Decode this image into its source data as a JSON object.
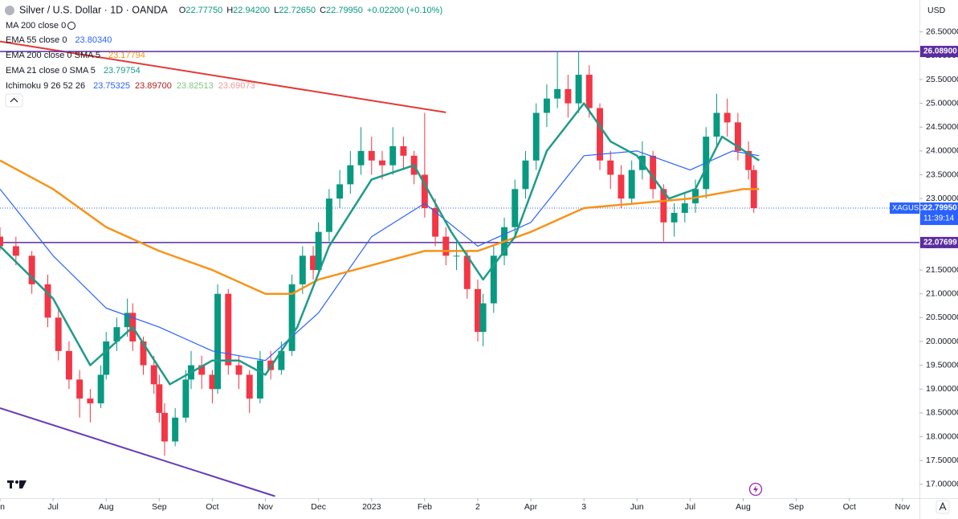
{
  "chart_data": {
    "type": "candlestick",
    "title": "Silver / U.S. Dollar · 1D · OANDA",
    "quote": [
      {
        "key": "O",
        "value": "22.77750"
      },
      {
        "key": "H",
        "value": "22.94200"
      },
      {
        "key": "L",
        "value": "22.72650"
      },
      {
        "key": "C",
        "value": "22.79950"
      }
    ],
    "change": "+0.02200 (+0.10%)",
    "currency": "USD",
    "up_color": "#089981",
    "down_color": "#f23645",
    "xlim": [
      0,
      17.32
    ],
    "ylim": [
      16.71,
      27.17
    ],
    "xticks": [
      {
        "value": 0,
        "label": "un"
      },
      {
        "value": 1,
        "label": "Jul"
      },
      {
        "value": 2,
        "label": "Aug"
      },
      {
        "value": 3,
        "label": "Sep"
      },
      {
        "value": 4,
        "label": "Oct"
      },
      {
        "value": 5,
        "label": "Nov"
      },
      {
        "value": 6,
        "label": "Dec"
      },
      {
        "value": 7,
        "label": "2023"
      },
      {
        "value": 8,
        "label": "Feb"
      },
      {
        "value": 9,
        "label": "2"
      },
      {
        "value": 10,
        "label": "Apr"
      },
      {
        "value": 11,
        "label": "3"
      },
      {
        "value": 12,
        "label": "Jun"
      },
      {
        "value": 13,
        "label": "Jul"
      },
      {
        "value": 14,
        "label": "Aug"
      },
      {
        "value": 15,
        "label": "Sep"
      },
      {
        "value": 16,
        "label": "Oct"
      },
      {
        "value": 17,
        "label": "Nov"
      }
    ],
    "yticks": [
      {
        "value": 26.5,
        "label": "26.50000"
      },
      {
        "value": 26,
        "label": "26.00000"
      },
      {
        "value": 25.5,
        "label": "25.50000"
      },
      {
        "value": 25,
        "label": "25.00000"
      },
      {
        "value": 24.5,
        "label": "24.50000"
      },
      {
        "value": 24,
        "label": "24.00000"
      },
      {
        "value": 23.5,
        "label": "23.50000"
      },
      {
        "value": 23,
        "label": "23.00000"
      },
      {
        "value": 22.5,
        "label": "22.50000"
      },
      {
        "value": 22,
        "label": "22.00000"
      },
      {
        "value": 21.5,
        "label": "21.50000"
      },
      {
        "value": 21,
        "label": "21.00000"
      },
      {
        "value": 20.5,
        "label": "20.50000"
      },
      {
        "value": 20,
        "label": "20.00000"
      },
      {
        "value": 19.5,
        "label": "19.50000"
      },
      {
        "value": 19,
        "label": "19.00000"
      },
      {
        "value": 18.5,
        "label": "18.50000"
      },
      {
        "value": 18,
        "label": "18.00000"
      },
      {
        "value": 17.5,
        "label": "17.50000"
      },
      {
        "value": 17,
        "label": "17.00000"
      }
    ],
    "grid": false,
    "x": [
      0.0,
      0.3,
      0.6,
      0.9,
      1.1,
      1.3,
      1.5,
      1.7,
      1.9,
      2.0,
      2.2,
      2.4,
      2.5,
      2.7,
      2.9,
      3.0,
      3.1,
      3.3,
      3.5,
      3.6,
      3.8,
      4.0,
      4.1,
      4.3,
      4.5,
      4.7,
      4.9,
      5.1,
      5.3,
      5.5,
      5.7,
      5.9,
      6.0,
      6.2,
      6.4,
      6.6,
      6.8,
      7.0,
      7.2,
      7.4,
      7.6,
      7.8,
      8.0,
      8.2,
      8.4,
      8.6,
      8.8,
      9.0,
      9.1,
      9.3,
      9.5,
      9.7,
      9.9,
      10.1,
      10.3,
      10.5,
      10.7,
      10.9,
      11.1,
      11.3,
      11.5,
      11.7,
      11.9,
      12.1,
      12.3,
      12.5,
      12.7,
      12.9,
      13.1,
      13.3,
      13.5,
      13.7,
      13.9,
      14.1,
      14.2
    ],
    "open": [
      22.2,
      22.0,
      21.8,
      21.2,
      20.5,
      19.8,
      19.2,
      18.8,
      18.7,
      19.3,
      20.0,
      20.3,
      20.6,
      20.0,
      19.5,
      19.1,
      18.5,
      17.9,
      18.4,
      19.2,
      19.5,
      19.3,
      19.0,
      21.0,
      19.5,
      19.3,
      18.8,
      19.6,
      19.4,
      19.8,
      21.2,
      21.8,
      21.5,
      22.3,
      23.0,
      23.3,
      23.7,
      24.0,
      23.8,
      23.7,
      24.1,
      23.9,
      23.5,
      22.8,
      22.2,
      21.8,
      21.8,
      21.1,
      20.2,
      20.8,
      21.8,
      22.4,
      23.2,
      23.8,
      24.8,
      25.1,
      25.3,
      25.0,
      25.6,
      24.9,
      23.8,
      23.5,
      23.0,
      23.6,
      23.9,
      23.2,
      22.5,
      22.7,
      22.9,
      23.2,
      24.3,
      24.8,
      24.6,
      24.0,
      23.6
    ],
    "high": [
      22.4,
      22.2,
      21.9,
      21.4,
      20.7,
      20.0,
      19.4,
      19.0,
      19.5,
      20.2,
      20.5,
      20.9,
      20.8,
      20.1,
      19.7,
      19.3,
      18.7,
      18.6,
      19.4,
      19.8,
      19.7,
      19.4,
      21.2,
      21.1,
      19.7,
      19.4,
      19.8,
      19.8,
      20.0,
      21.4,
      22.0,
      22.0,
      22.5,
      23.2,
      23.6,
      24.0,
      24.5,
      24.3,
      24.0,
      24.5,
      24.3,
      24.0,
      24.8,
      23.0,
      22.4,
      22.1,
      21.9,
      21.3,
      21.0,
      22.0,
      22.6,
      23.4,
      24.0,
      25.0,
      25.4,
      26.1,
      25.6,
      26.1,
      25.8,
      25.0,
      24.0,
      23.7,
      23.8,
      24.2,
      24.0,
      23.3,
      22.9,
      23.1,
      23.4,
      24.5,
      25.2,
      25.1,
      24.8,
      24.2,
      23.7
    ],
    "low": [
      21.9,
      21.6,
      21.0,
      20.3,
      19.6,
      19.0,
      18.4,
      18.3,
      18.6,
      19.2,
      19.8,
      20.1,
      19.8,
      19.3,
      18.9,
      18.3,
      17.6,
      17.8,
      18.3,
      19.0,
      19.0,
      18.7,
      18.9,
      19.3,
      19.0,
      18.5,
      18.7,
      19.2,
      19.3,
      19.7,
      21.0,
      21.3,
      21.4,
      22.1,
      22.8,
      23.1,
      23.5,
      23.5,
      23.4,
      23.5,
      23.6,
      23.3,
      22.6,
      22.0,
      21.6,
      21.5,
      20.9,
      20.0,
      19.9,
      20.6,
      21.6,
      22.2,
      23.0,
      23.6,
      24.5,
      24.9,
      24.7,
      24.8,
      24.7,
      23.6,
      23.2,
      22.8,
      22.9,
      23.4,
      23.0,
      22.1,
      22.2,
      22.5,
      22.7,
      23.0,
      24.1,
      24.3,
      23.8,
      23.4,
      22.7
    ],
    "close": [
      22.0,
      21.8,
      21.2,
      20.5,
      19.8,
      19.2,
      18.8,
      18.7,
      19.3,
      20.0,
      20.3,
      20.6,
      20.0,
      19.5,
      19.1,
      18.5,
      17.9,
      18.4,
      19.2,
      19.5,
      19.3,
      19.0,
      21.0,
      19.5,
      19.3,
      18.8,
      19.6,
      19.4,
      19.8,
      21.2,
      21.8,
      21.5,
      22.3,
      23.0,
      23.3,
      23.7,
      24.0,
      23.8,
      23.7,
      24.1,
      23.9,
      23.5,
      22.8,
      22.2,
      21.8,
      21.8,
      21.1,
      20.2,
      20.8,
      21.8,
      22.4,
      23.2,
      23.8,
      24.8,
      25.1,
      25.3,
      25.0,
      25.6,
      24.9,
      23.8,
      23.5,
      23.0,
      23.6,
      23.9,
      23.2,
      22.5,
      22.7,
      22.9,
      23.2,
      24.3,
      24.8,
      24.6,
      24.0,
      23.6,
      22.8
    ],
    "series": [
      {
        "name": "EMA 55 close 0",
        "value_label": "23.80340",
        "color": "#2962ff",
        "width": 1.2,
        "x": [
          0,
          1,
          2,
          3,
          4,
          5,
          6,
          7,
          8,
          9,
          10,
          11,
          12,
          13,
          13.8,
          14.3
        ],
        "values": [
          23.2,
          21.8,
          20.7,
          20.3,
          19.8,
          19.6,
          20.6,
          22.2,
          22.9,
          22.0,
          22.5,
          23.9,
          24.0,
          23.6,
          24.0,
          23.9
        ]
      },
      {
        "name": "EMA 200 close 0 SMA 5",
        "value_label": "23.17794",
        "color": "#f7931a",
        "width": 2.5,
        "x": [
          0,
          1,
          2,
          3,
          4,
          5,
          5.5,
          6,
          7,
          8,
          9,
          10,
          11,
          12,
          13,
          14,
          14.3
        ],
        "values": [
          23.8,
          23.2,
          22.4,
          21.9,
          21.5,
          21.0,
          21.0,
          21.3,
          21.6,
          21.9,
          21.9,
          22.3,
          22.8,
          22.9,
          23.0,
          23.2,
          23.2
        ]
      },
      {
        "name": "EMA 21 close 0 SMA 5",
        "value_label": "23.79754",
        "color": "#1e9b8a",
        "width": 2.5,
        "x": [
          0,
          1,
          1.7,
          2.5,
          3.2,
          4,
          4.5,
          5,
          5.6,
          6.2,
          7,
          7.8,
          8.5,
          9.1,
          9.7,
          10.3,
          11,
          11.5,
          12,
          12.6,
          13.1,
          13.6,
          14.3
        ],
        "values": [
          22.0,
          20.9,
          19.5,
          20.3,
          19.1,
          19.6,
          19.6,
          19.3,
          20.3,
          22.0,
          23.4,
          23.7,
          22.3,
          21.3,
          22.2,
          24.0,
          25.0,
          24.2,
          23.9,
          23.0,
          23.2,
          24.3,
          23.8
        ]
      }
    ],
    "indicators": [
      {
        "name": "MA 200 close 0"
      },
      {
        "name": "Ichimoku 9 26 52 26",
        "value_labels": [
          "23.75325",
          "23.89700",
          "23.82513",
          "23.69073"
        ],
        "label_colors": [
          "#2962ff",
          "#b71c1c",
          "#81c784",
          "#ef9a9a"
        ]
      }
    ],
    "trend_lines": [
      {
        "x": [
          0,
          8.4
        ],
        "values": [
          26.3,
          24.81
        ],
        "color": "#e53935"
      },
      {
        "x": [
          0,
          5.18
        ],
        "values": [
          18.6,
          16.75
        ],
        "color": "#673ab7"
      }
    ],
    "price_lines": [
      {
        "value": 26.089,
        "label": "26.08900",
        "color": "#5b2ca0"
      },
      {
        "value": 22.07699,
        "label": "22.07699",
        "color": "#5b2ca0"
      }
    ],
    "last_price": {
      "value": 22.7995,
      "label": "22.79950",
      "symbol": "XAGUSD",
      "countdown": "11:39:14",
      "color": "#2962ff"
    }
  }
}
